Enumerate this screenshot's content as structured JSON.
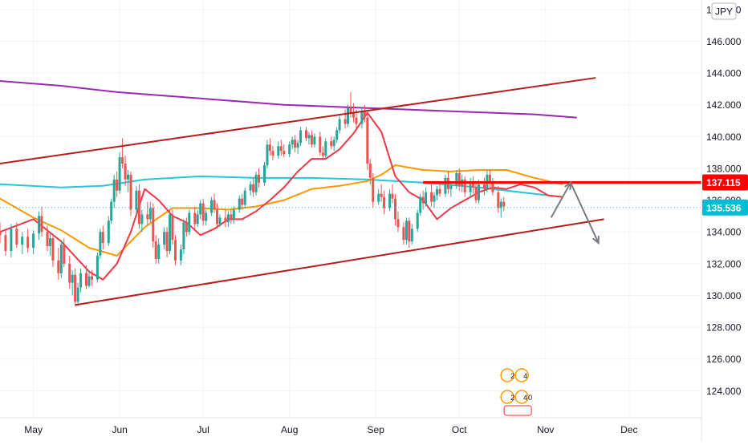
{
  "chart_data": {
    "type": "candlestick",
    "symbol_badge": "JPY",
    "y_ticks": [
      "124.000",
      "126.000",
      "128.000",
      "130.000",
      "132.000",
      "134.000",
      "136.000",
      "138.000",
      "140.000",
      "142.000",
      "144.000",
      "146.000",
      "148.000"
    ],
    "x_ticks": [
      {
        "label": "May",
        "day": 0
      },
      {
        "label": "Jun",
        "day": 31
      },
      {
        "label": "Jul",
        "day": 61
      },
      {
        "label": "Aug",
        "day": 92
      },
      {
        "label": "Sep",
        "day": 123
      },
      {
        "label": "Oct",
        "day": 153
      },
      {
        "label": "Nov",
        "day": 184
      },
      {
        "label": "Dec",
        "day": 214
      }
    ],
    "ylim": [
      122.3,
      148.6
    ],
    "xlim_days": [
      -12,
      240
    ],
    "price_labels": {
      "level": "137.115",
      "last": "135.536"
    },
    "levels": {
      "horizontal": 137.115,
      "last_price": 135.536
    },
    "colors": {
      "up": "#26a69a",
      "down": "#ef5350",
      "channel": "#b71c1c",
      "ma_purple": "#9c27b0",
      "ma_cyan": "#26c6da",
      "ma_orange": "#ff9800",
      "ma_red": "#f23645",
      "level_red": "#ff0000",
      "arrows": "#787b86",
      "last_label_bg": "#00bcd4"
    },
    "channel_upper": [
      [
        -12,
        138.3
      ],
      [
        202,
        143.7
      ]
    ],
    "channel_lower": [
      [
        15,
        129.4
      ],
      [
        205,
        134.8
      ]
    ],
    "level_segment": [
      [
        140,
        137.115
      ],
      [
        240,
        137.115
      ]
    ],
    "projection": [
      [
        186,
        134.9
      ],
      [
        193,
        137.1
      ],
      [
        203,
        133.3
      ]
    ],
    "ma_purple": [
      [
        -12,
        143.5
      ],
      [
        10,
        143.2
      ],
      [
        30,
        142.8
      ],
      [
        60,
        142.4
      ],
      [
        90,
        142.0
      ],
      [
        120,
        141.8
      ],
      [
        150,
        141.6
      ],
      [
        180,
        141.4
      ],
      [
        195,
        141.2
      ]
    ],
    "ma_cyan": [
      [
        -12,
        137.0
      ],
      [
        10,
        136.8
      ],
      [
        25,
        136.9
      ],
      [
        40,
        137.3
      ],
      [
        60,
        137.5
      ],
      [
        80,
        137.4
      ],
      [
        100,
        137.4
      ],
      [
        120,
        137.3
      ],
      [
        140,
        137.1
      ],
      [
        160,
        136.8
      ],
      [
        180,
        136.4
      ],
      [
        190,
        136.2
      ]
    ],
    "ma_orange": [
      [
        -12,
        136.1
      ],
      [
        0,
        134.9
      ],
      [
        10,
        134.1
      ],
      [
        20,
        133.0
      ],
      [
        30,
        132.5
      ],
      [
        40,
        134.3
      ],
      [
        50,
        135.5
      ],
      [
        60,
        135.5
      ],
      [
        70,
        135.4
      ],
      [
        80,
        135.6
      ],
      [
        90,
        136.0
      ],
      [
        100,
        136.7
      ],
      [
        110,
        136.9
      ],
      [
        120,
        137.2
      ],
      [
        125,
        137.6
      ],
      [
        130,
        138.2
      ],
      [
        140,
        137.9
      ],
      [
        150,
        137.8
      ],
      [
        160,
        137.9
      ],
      [
        170,
        137.9
      ],
      [
        180,
        137.4
      ],
      [
        190,
        137.0
      ]
    ],
    "ma_red": [
      [
        -12,
        134.0
      ],
      [
        0,
        134.8
      ],
      [
        10,
        133.4
      ],
      [
        20,
        131.5
      ],
      [
        25,
        131.0
      ],
      [
        30,
        132.0
      ],
      [
        35,
        134.0
      ],
      [
        40,
        136.7
      ],
      [
        45,
        136.0
      ],
      [
        50,
        135.0
      ],
      [
        55,
        134.6
      ],
      [
        60,
        133.8
      ],
      [
        65,
        134.2
      ],
      [
        70,
        134.8
      ],
      [
        75,
        134.8
      ],
      [
        80,
        135.3
      ],
      [
        85,
        136.0
      ],
      [
        90,
        136.8
      ],
      [
        95,
        137.8
      ],
      [
        100,
        138.6
      ],
      [
        105,
        138.6
      ],
      [
        110,
        139.2
      ],
      [
        115,
        140.2
      ],
      [
        120,
        141.5
      ],
      [
        125,
        140.3
      ],
      [
        130,
        137.5
      ],
      [
        135,
        136.5
      ],
      [
        140,
        136.0
      ],
      [
        145,
        134.8
      ],
      [
        150,
        135.5
      ],
      [
        155,
        136.0
      ],
      [
        160,
        136.5
      ],
      [
        165,
        136.8
      ],
      [
        170,
        136.7
      ],
      [
        175,
        137.0
      ],
      [
        180,
        136.8
      ],
      [
        185,
        136.3
      ],
      [
        190,
        136.2
      ]
    ],
    "candles": [
      [
        -12,
        134.0,
        134.6,
        133.3,
        133.8
      ],
      [
        -10,
        133.8,
        134.1,
        132.5,
        132.8
      ],
      [
        -8,
        132.8,
        134.5,
        132.4,
        134.2
      ],
      [
        -6,
        134.2,
        134.6,
        133.0,
        133.2
      ],
      [
        -4,
        133.2,
        134.0,
        132.6,
        133.7
      ],
      [
        -2,
        133.7,
        134.2,
        132.7,
        133.0
      ],
      [
        0,
        133.0,
        134.1,
        132.6,
        133.9
      ],
      [
        2,
        133.9,
        135.3,
        133.5,
        135.0
      ],
      [
        3,
        135.0,
        135.6,
        133.7,
        134.0
      ],
      [
        5,
        134.0,
        134.4,
        132.8,
        133.1
      ],
      [
        6,
        133.1,
        133.9,
        132.5,
        133.6
      ],
      [
        7,
        133.6,
        133.9,
        131.8,
        132.2
      ],
      [
        9,
        132.2,
        133.0,
        131.0,
        131.4
      ],
      [
        10,
        131.4,
        133.5,
        131.1,
        133.2
      ],
      [
        11,
        133.2,
        133.6,
        131.8,
        132.0
      ],
      [
        13,
        132.0,
        132.5,
        130.4,
        130.8
      ],
      [
        14,
        130.8,
        131.6,
        130.0,
        131.3
      ],
      [
        15,
        131.3,
        131.7,
        129.3,
        129.6
      ],
      [
        16,
        129.6,
        130.8,
        129.4,
        130.5
      ],
      [
        17,
        130.5,
        131.7,
        130.2,
        131.4
      ],
      [
        19,
        131.4,
        131.9,
        130.4,
        130.6
      ],
      [
        20,
        130.6,
        131.6,
        130.5,
        131.2
      ],
      [
        21,
        131.2,
        131.6,
        130.6,
        131.0
      ],
      [
        23,
        131.0,
        132.7,
        130.8,
        132.5
      ],
      [
        24,
        132.5,
        134.2,
        132.3,
        134.0
      ],
      [
        25,
        134.0,
        134.4,
        132.9,
        133.3
      ],
      [
        27,
        133.3,
        135.0,
        133.1,
        134.7
      ],
      [
        28,
        134.7,
        136.1,
        134.5,
        135.9
      ],
      [
        29,
        135.9,
        137.6,
        135.5,
        137.3
      ],
      [
        30,
        137.3,
        137.8,
        136.2,
        136.6
      ],
      [
        31,
        136.6,
        139.0,
        136.4,
        138.7
      ],
      [
        32,
        138.7,
        139.9,
        138.0,
        138.3
      ],
      [
        33,
        138.3,
        138.8,
        136.9,
        137.3
      ],
      [
        34,
        137.3,
        137.9,
        136.5,
        137.6
      ],
      [
        35,
        137.6,
        137.8,
        135.0,
        135.4
      ],
      [
        37,
        135.4,
        136.9,
        135.1,
        136.6
      ],
      [
        38,
        136.6,
        137.0,
        134.2,
        134.5
      ],
      [
        39,
        134.5,
        135.4,
        134.0,
        135.1
      ],
      [
        41,
        135.1,
        135.9,
        134.4,
        134.8
      ],
      [
        42,
        134.8,
        135.9,
        134.6,
        135.5
      ],
      [
        43,
        135.5,
        135.8,
        133.0,
        133.4
      ],
      [
        44,
        133.4,
        133.8,
        132.0,
        132.3
      ],
      [
        45,
        132.3,
        133.6,
        132.0,
        133.2
      ],
      [
        47,
        133.2,
        134.3,
        132.9,
        134.0
      ],
      [
        48,
        134.0,
        134.3,
        132.4,
        132.8
      ],
      [
        49,
        132.8,
        135.4,
        132.6,
        135.1
      ],
      [
        50,
        135.1,
        135.4,
        133.2,
        133.5
      ],
      [
        51,
        133.5,
        133.8,
        131.9,
        132.2
      ],
      [
        53,
        132.2,
        133.2,
        131.9,
        132.9
      ],
      [
        54,
        132.9,
        134.8,
        132.6,
        134.6
      ],
      [
        55,
        134.6,
        134.9,
        133.7,
        134.0
      ],
      [
        56,
        134.0,
        135.4,
        133.8,
        135.2
      ],
      [
        58,
        135.2,
        135.6,
        134.2,
        134.5
      ],
      [
        59,
        134.5,
        135.4,
        134.3,
        135.1
      ],
      [
        60,
        135.1,
        136.0,
        134.8,
        135.8
      ],
      [
        61,
        135.8,
        136.1,
        134.4,
        134.7
      ],
      [
        62,
        134.7,
        135.4,
        134.4,
        135.2
      ],
      [
        64,
        135.2,
        136.2,
        135.0,
        136.0
      ],
      [
        65,
        136.0,
        136.4,
        135.2,
        135.4
      ],
      [
        66,
        135.4,
        135.8,
        134.2,
        134.5
      ],
      [
        67,
        134.5,
        135.1,
        134.3,
        134.9
      ],
      [
        69,
        134.9,
        135.4,
        134.3,
        134.6
      ],
      [
        70,
        134.6,
        135.3,
        134.3,
        135.1
      ],
      [
        71,
        135.1,
        135.4,
        134.5,
        134.8
      ],
      [
        72,
        134.8,
        135.6,
        134.5,
        135.4
      ],
      [
        74,
        135.4,
        136.3,
        135.2,
        136.1
      ],
      [
        75,
        136.1,
        136.4,
        135.4,
        135.7
      ],
      [
        76,
        135.7,
        136.8,
        135.5,
        136.6
      ],
      [
        78,
        136.6,
        137.2,
        136.3,
        137.0
      ],
      [
        79,
        137.0,
        137.4,
        136.2,
        136.5
      ],
      [
        80,
        136.5,
        137.8,
        136.3,
        137.6
      ],
      [
        81,
        137.6,
        138.0,
        136.8,
        137.1
      ],
      [
        83,
        137.1,
        138.4,
        136.9,
        138.2
      ],
      [
        84,
        138.2,
        139.8,
        138.0,
        139.5
      ],
      [
        85,
        139.5,
        139.9,
        138.8,
        139.1
      ],
      [
        86,
        139.1,
        139.4,
        138.5,
        138.8
      ],
      [
        88,
        138.8,
        139.7,
        138.6,
        139.4
      ],
      [
        89,
        139.4,
        139.8,
        138.8,
        139.1
      ],
      [
        90,
        139.1,
        139.5,
        138.7,
        138.9
      ],
      [
        92,
        138.9,
        139.7,
        138.7,
        139.5
      ],
      [
        93,
        139.5,
        140.0,
        139.2,
        139.8
      ],
      [
        94,
        139.8,
        140.1,
        139.0,
        139.3
      ],
      [
        95,
        139.3,
        139.8,
        138.9,
        139.6
      ],
      [
        96,
        139.6,
        140.6,
        139.4,
        140.4
      ],
      [
        98,
        140.4,
        140.6,
        139.7,
        139.9
      ],
      [
        99,
        139.9,
        140.3,
        139.5,
        140.1
      ],
      [
        100,
        140.1,
        140.4,
        139.3,
        139.5
      ],
      [
        101,
        139.5,
        140.2,
        139.3,
        140.0
      ],
      [
        103,
        140.0,
        140.3,
        138.8,
        139.0
      ],
      [
        104,
        139.0,
        139.4,
        138.5,
        138.8
      ],
      [
        105,
        138.8,
        139.9,
        138.6,
        139.7
      ],
      [
        107,
        139.7,
        140.0,
        139.2,
        139.4
      ],
      [
        108,
        139.4,
        140.0,
        139.1,
        139.8
      ],
      [
        109,
        139.8,
        140.6,
        139.6,
        140.4
      ],
      [
        110,
        140.4,
        141.3,
        140.2,
        141.1
      ],
      [
        112,
        141.1,
        141.7,
        140.5,
        140.8
      ],
      [
        113,
        140.8,
        142.0,
        140.6,
        141.8
      ],
      [
        114,
        141.8,
        142.8,
        141.2,
        141.5
      ],
      [
        115,
        141.5,
        142.1,
        140.9,
        141.2
      ],
      [
        116,
        141.2,
        141.7,
        140.5,
        140.8
      ],
      [
        118,
        140.8,
        141.8,
        140.5,
        141.6
      ],
      [
        119,
        141.6,
        142.0,
        140.9,
        141.2
      ],
      [
        120,
        141.2,
        141.5,
        137.9,
        138.3
      ],
      [
        121,
        138.3,
        138.6,
        137.0,
        137.4
      ],
      [
        122,
        137.4,
        137.7,
        135.5,
        135.9
      ],
      [
        124,
        135.9,
        136.7,
        135.7,
        136.4
      ],
      [
        125,
        136.4,
        137.0,
        135.9,
        136.2
      ],
      [
        126,
        136.2,
        136.6,
        135.1,
        135.5
      ],
      [
        128,
        135.5,
        136.7,
        135.3,
        136.4
      ],
      [
        129,
        136.4,
        137.0,
        135.8,
        136.1
      ],
      [
        130,
        136.1,
        136.4,
        134.4,
        134.8
      ],
      [
        131,
        134.8,
        135.3,
        134.0,
        134.3
      ],
      [
        133,
        134.3,
        134.6,
        133.2,
        133.5
      ],
      [
        134,
        133.5,
        134.9,
        133.2,
        134.7
      ],
      [
        135,
        134.7,
        134.9,
        133.0,
        133.4
      ],
      [
        136,
        133.4,
        134.5,
        133.2,
        134.2
      ],
      [
        138,
        134.2,
        135.4,
        134.0,
        135.2
      ],
      [
        139,
        135.2,
        136.4,
        135.0,
        136.2
      ],
      [
        140,
        136.2,
        136.6,
        135.4,
        135.8
      ],
      [
        141,
        135.8,
        136.8,
        135.6,
        136.5
      ],
      [
        143,
        136.5,
        137.0,
        135.6,
        135.9
      ],
      [
        144,
        135.9,
        136.5,
        135.5,
        136.3
      ],
      [
        145,
        136.3,
        136.9,
        136.0,
        136.7
      ],
      [
        146,
        136.7,
        137.1,
        136.2,
        136.4
      ],
      [
        148,
        136.4,
        137.6,
        136.2,
        137.4
      ],
      [
        149,
        137.4,
        137.8,
        136.4,
        136.7
      ],
      [
        150,
        136.7,
        137.2,
        136.2,
        136.9
      ],
      [
        152,
        136.9,
        137.9,
        136.7,
        137.7
      ],
      [
        153,
        137.7,
        138.0,
        136.6,
        136.9
      ],
      [
        154,
        136.9,
        137.6,
        136.5,
        137.3
      ],
      [
        155,
        137.3,
        137.5,
        136.2,
        136.5
      ],
      [
        157,
        136.5,
        137.4,
        136.2,
        137.1
      ],
      [
        158,
        137.1,
        137.5,
        136.4,
        136.8
      ],
      [
        159,
        136.8,
        137.2,
        135.8,
        136.0
      ],
      [
        160,
        136.0,
        137.3,
        135.8,
        137.0
      ],
      [
        162,
        137.0,
        137.4,
        136.3,
        136.7
      ],
      [
        163,
        136.7,
        137.9,
        136.5,
        137.6
      ],
      [
        164,
        137.6,
        137.9,
        136.8,
        137.1
      ],
      [
        165,
        137.1,
        137.4,
        136.3,
        136.5
      ],
      [
        167,
        136.5,
        136.9,
        135.2,
        135.5
      ],
      [
        168,
        135.5,
        136.1,
        134.9,
        135.9
      ],
      [
        169,
        135.9,
        136.2,
        135.3,
        135.6
      ]
    ],
    "badges": [
      "2",
      "4",
      "2",
      "4",
      "0"
    ]
  }
}
